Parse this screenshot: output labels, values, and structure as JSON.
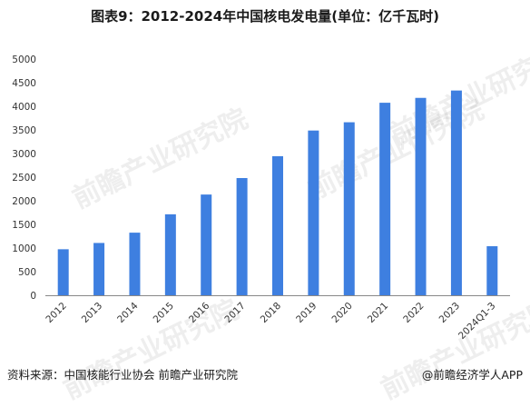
{
  "title": "图表9：2012-2024年中国核电发电量(单位：亿千瓦时)",
  "source": "资料来源：中国核能行业协会 前瞻产业研究院",
  "brand": "@前瞻经济学人APP",
  "watermark": "前瞻产业研究院",
  "colors": {
    "bar": "#3e7fe0",
    "axis": "#888888"
  },
  "chart_data": {
    "type": "bar",
    "title": "图表9：2012-2024年中国核电发电量(单位：亿千瓦时)",
    "xlabel": "",
    "ylabel": "",
    "categories": [
      "2012",
      "2013",
      "2014",
      "2015",
      "2016",
      "2017",
      "2018",
      "2019",
      "2020",
      "2021",
      "2022",
      "2023",
      "2024Q1-3"
    ],
    "values": [
      974,
      1107,
      1325,
      1714,
      2132,
      2481,
      2944,
      3487,
      3662,
      4075,
      4178,
      4334,
      1038
    ],
    "yticks": [
      0,
      500,
      1000,
      1500,
      2000,
      2500,
      3000,
      3500,
      4000,
      4500,
      5000
    ],
    "ylim": [
      0,
      5000
    ],
    "grid": false,
    "legend": "none"
  }
}
